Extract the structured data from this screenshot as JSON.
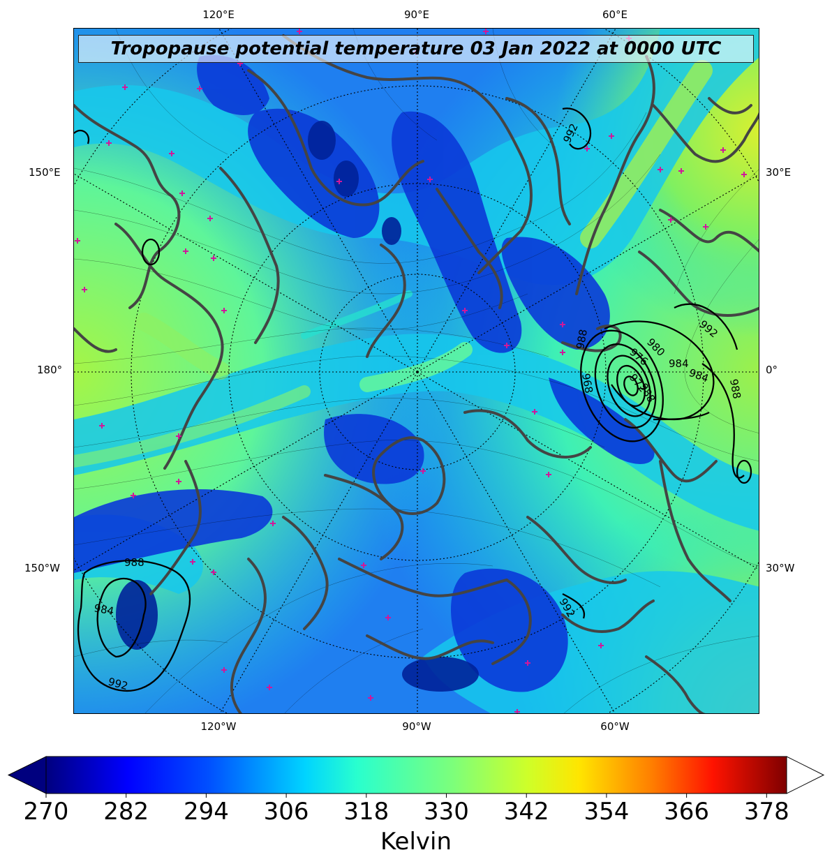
{
  "title": "Tropopause potential temperature 03 Jan 2022 at 0000 UTC",
  "map": {
    "longitude_labels_top": [
      "120°E",
      "90°E",
      "60°E"
    ],
    "longitude_labels_bottom": [
      "120°W",
      "90°W",
      "60°W"
    ],
    "latitude_labels_left": [
      "150°E",
      "180°",
      "150°W"
    ],
    "latitude_labels_right": [
      "30°E",
      "0°",
      "30°W"
    ],
    "pressure_contour_labels": [
      "992",
      "988",
      "984",
      "980",
      "976",
      "972",
      "968"
    ],
    "colormap": "jet"
  },
  "colorbar": {
    "ticks": [
      "270",
      "282",
      "294",
      "306",
      "318",
      "330",
      "342",
      "354",
      "366",
      "378"
    ],
    "unit": "Kelvin",
    "min": 270,
    "max": 381,
    "extend": "both"
  }
}
